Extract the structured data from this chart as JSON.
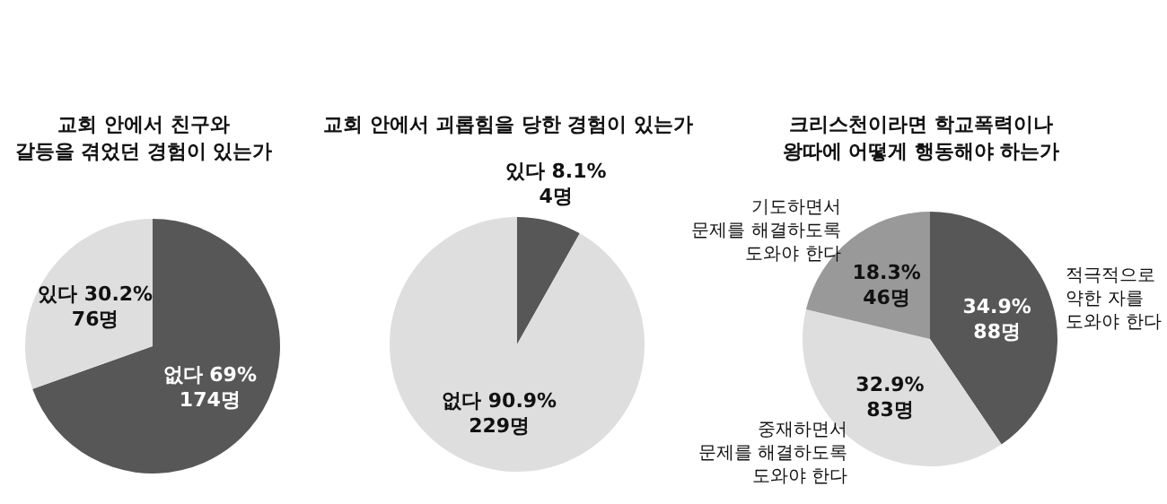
{
  "chart_data": [
    {
      "type": "pie",
      "title": "교회 안에서 친구와\n갈등을 겪었던 경험이 있는가",
      "categories": [
        "없다",
        "있다"
      ],
      "values": [
        69,
        30.2
      ],
      "colors": [
        "#575757",
        "#dedede"
      ],
      "value_labels": [
        "69%\n174명",
        "30.2%\n76명"
      ]
    },
    {
      "type": "pie",
      "title": "교회 안에서 괴롭힘을 당한 경험이 있는가",
      "categories": [
        "있다",
        "없다"
      ],
      "values": [
        8.1,
        90.9
      ],
      "colors": [
        "#575757",
        "#dedede"
      ],
      "value_labels": [
        "8.1%\n4명",
        "90.9%\n229명"
      ]
    },
    {
      "type": "pie",
      "title": "크리스천이라면 학교폭력이나\n왕따에 어떻게 행동해야 하는가",
      "categories": [
        "적극적으로\n약한 자를\n도와야 한다",
        "중재하면서\n문제를 해결하도록\n도와야 한다",
        "기도하면서\n문제를 해결하도록\n도와야 한다"
      ],
      "values": [
        34.9,
        32.9,
        18.3
      ],
      "colors": [
        "#575757",
        "#dedede",
        "#999999"
      ],
      "value_labels": [
        "34.9%\n88명",
        "32.9%\n83명",
        "18.3%\n46명"
      ]
    }
  ]
}
